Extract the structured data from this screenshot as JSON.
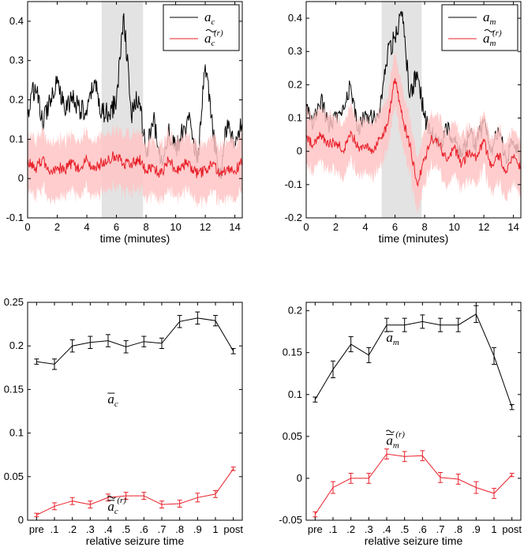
{
  "chart_data": [
    {
      "type": "line",
      "panel": "top-left",
      "xlabel": "time (minutes)",
      "ylabel": "",
      "xlim": [
        0,
        14.5
      ],
      "ylim": [
        -0.1,
        0.45
      ],
      "xticks": [
        0,
        2,
        4,
        6,
        8,
        10,
        12,
        14
      ],
      "yticks": [
        -0.1,
        0,
        0.1,
        0.2,
        0.3,
        0.4
      ],
      "ytick_labels": [
        "-0.1",
        "0",
        "0.1",
        "0.2",
        "0.3",
        "0.4"
      ],
      "shaded_interval": [
        5.0,
        7.8
      ],
      "legend_position": "top-right",
      "series": [
        {
          "name": "a_c",
          "legend_main": "a",
          "legend_sub": "c",
          "legend_sup": "",
          "color": "#000000",
          "x": [
            0,
            0.5,
            1,
            1.5,
            2,
            2.5,
            3,
            3.5,
            4,
            4.5,
            5,
            5.5,
            6,
            6.5,
            7,
            7.5,
            8,
            8.5,
            9,
            9.5,
            10,
            10.5,
            11,
            11.5,
            12,
            12.5,
            13,
            13.5,
            14,
            14.5
          ],
          "values": [
            0.16,
            0.24,
            0.14,
            0.2,
            0.26,
            0.17,
            0.21,
            0.18,
            0.16,
            0.25,
            0.17,
            0.16,
            0.2,
            0.42,
            0.16,
            0.21,
            0.06,
            0.15,
            0.04,
            0.12,
            0.07,
            0.12,
            0.15,
            0.04,
            0.29,
            0.12,
            0.0,
            0.15,
            0.08,
            0.14
          ]
        },
        {
          "name": "a_c^(r)",
          "legend_main": "a",
          "legend_sub": "c",
          "legend_sup": "(r)",
          "color": "#e8202a",
          "x": [
            0,
            0.5,
            1,
            1.5,
            2,
            2.5,
            3,
            3.5,
            4,
            4.5,
            5,
            5.5,
            6,
            6.5,
            7,
            7.5,
            8,
            8.5,
            9,
            9.5,
            10,
            10.5,
            11,
            11.5,
            12,
            12.5,
            13,
            13.5,
            14,
            14.5
          ],
          "values": [
            0.05,
            0.02,
            0.05,
            0.01,
            0.03,
            0.02,
            0.04,
            0.02,
            0.05,
            0.02,
            0.04,
            0.05,
            0.06,
            0.04,
            0.04,
            0.05,
            0.02,
            0.03,
            0.01,
            0.05,
            0.02,
            0.04,
            0.03,
            0.01,
            0.02,
            0.04,
            0.01,
            0.03,
            0.02,
            0.04
          ],
          "band_halfwidth": 0.08
        }
      ]
    },
    {
      "type": "line",
      "panel": "top-right",
      "xlabel": "time (minutes)",
      "ylabel": "",
      "xlim": [
        0,
        14.5
      ],
      "ylim": [
        -0.2,
        0.45
      ],
      "xticks": [
        0,
        2,
        4,
        6,
        8,
        10,
        12,
        14
      ],
      "yticks": [
        -0.2,
        -0.1,
        0,
        0.1,
        0.2,
        0.3,
        0.4
      ],
      "ytick_labels": [
        "-0.2",
        "-0.1",
        "0",
        "0.1",
        "0.2",
        "0.3",
        "0.4"
      ],
      "shaded_interval": [
        5.1,
        7.8
      ],
      "legend_position": "top-right",
      "series": [
        {
          "name": "a_m",
          "legend_main": "a",
          "legend_sub": "m",
          "legend_sup": "",
          "color": "#000000",
          "x": [
            0,
            0.5,
            1,
            1.5,
            2,
            2.5,
            3,
            3.5,
            4,
            4.5,
            5,
            5.5,
            6,
            6.5,
            7,
            7.5,
            8,
            8.5,
            9,
            9.5,
            10,
            10.5,
            11,
            11.5,
            12,
            12.5,
            13,
            13.5,
            14,
            14.5
          ],
          "values": [
            0.12,
            0.08,
            0.16,
            0.08,
            0.1,
            0.14,
            0.2,
            0.06,
            0.12,
            0.09,
            0.13,
            0.3,
            0.34,
            0.42,
            0.16,
            0.24,
            0.1,
            0.05,
            0.02,
            0.06,
            0.04,
            -0.02,
            0.05,
            0.02,
            0.09,
            0.0,
            0.06,
            -0.02,
            0.03,
            -0.03
          ]
        },
        {
          "name": "a_m^(r)",
          "legend_main": "a",
          "legend_sub": "m",
          "legend_sup": "(r)",
          "color": "#e8202a",
          "x": [
            0,
            0.5,
            1,
            1.5,
            2,
            2.5,
            3,
            3.5,
            4,
            4.5,
            5,
            5.5,
            6,
            6.5,
            7,
            7.5,
            8,
            8.5,
            9,
            9.5,
            10,
            10.5,
            11,
            11.5,
            12,
            12.5,
            13,
            13.5,
            14,
            14.5
          ],
          "values": [
            0.04,
            0.02,
            0.05,
            0.02,
            0.03,
            0.0,
            0.06,
            0.01,
            0.02,
            0.0,
            0.04,
            0.08,
            0.22,
            0.1,
            0.02,
            -0.1,
            -0.02,
            0.04,
            0.02,
            -0.03,
            0.01,
            -0.04,
            0.0,
            -0.02,
            0.03,
            -0.05,
            -0.01,
            -0.06,
            -0.02,
            -0.05
          ],
          "band_halfwidth": 0.09
        }
      ]
    },
    {
      "type": "line",
      "panel": "bottom-left",
      "xlabel": "relative seizure time",
      "ylabel": "",
      "categories": [
        "pre",
        ".1",
        ".2",
        ".3",
        ".4",
        ".5",
        ".6",
        ".7",
        ".8",
        ".9",
        "1",
        "post"
      ],
      "ylim": [
        0,
        0.25
      ],
      "yticks": [
        0,
        0.05,
        0.1,
        0.15,
        0.2,
        0.25
      ],
      "ytick_labels": [
        "0",
        "0.05",
        "0.1",
        "0.15",
        "0.2",
        "0.25"
      ],
      "annotations": [
        {
          "text_main": "a",
          "text_sub": "c",
          "text_sup": "",
          "bars": "=",
          "x_category": 3.0,
          "y": 0.134
        },
        {
          "text_main": "a",
          "text_sub": "c",
          "text_sup": "(r)",
          "bars": "≈",
          "x_category": 3.0,
          "y": 0.011
        }
      ],
      "series": [
        {
          "name": "mean a_c",
          "color": "#000000",
          "values": [
            0.182,
            0.179,
            0.2,
            0.204,
            0.206,
            0.199,
            0.205,
            0.203,
            0.228,
            0.232,
            0.229,
            0.194
          ],
          "errors": [
            0.003,
            0.006,
            0.007,
            0.007,
            0.007,
            0.007,
            0.006,
            0.006,
            0.007,
            0.007,
            0.006,
            0.003
          ]
        },
        {
          "name": "mean a_c^(r)",
          "color": "#e8202a",
          "values": [
            0.006,
            0.016,
            0.022,
            0.018,
            0.026,
            0.028,
            0.028,
            0.018,
            0.019,
            0.026,
            0.03,
            0.059
          ],
          "errors": [
            0.002,
            0.004,
            0.004,
            0.004,
            0.004,
            0.004,
            0.004,
            0.004,
            0.004,
            0.005,
            0.004,
            0.002
          ]
        }
      ]
    },
    {
      "type": "line",
      "panel": "bottom-right",
      "xlabel": "relative seizure time",
      "ylabel": "",
      "categories": [
        "pre",
        ".1",
        ".2",
        ".3",
        ".4",
        ".5",
        ".6",
        ".7",
        ".8",
        ".9",
        "1",
        "post"
      ],
      "ylim": [
        -0.05,
        0.21
      ],
      "yticks": [
        -0.05,
        0,
        0.05,
        0.1,
        0.15,
        0.2
      ],
      "ytick_labels": [
        "-0.05",
        "0",
        "0.05",
        "0.1",
        "0.15",
        "0.2"
      ],
      "annotations": [
        {
          "text_main": "a",
          "text_sub": "m",
          "text_sup": "",
          "bars": "=",
          "x_category": 3.0,
          "y": 0.163
        },
        {
          "text_main": "a",
          "text_sub": "m",
          "text_sup": "(r)",
          "bars": "≈",
          "x_category": 3.0,
          "y": 0.04
        }
      ],
      "series": [
        {
          "name": "mean a_m",
          "color": "#000000",
          "values": [
            0.094,
            0.13,
            0.16,
            0.147,
            0.183,
            0.183,
            0.187,
            0.183,
            0.183,
            0.196,
            0.146,
            0.085
          ],
          "errors": [
            0.003,
            0.01,
            0.009,
            0.009,
            0.008,
            0.008,
            0.008,
            0.008,
            0.008,
            0.01,
            0.01,
            0.003
          ]
        },
        {
          "name": "mean a_m^(r)",
          "color": "#e8202a",
          "values": [
            -0.043,
            -0.011,
            0.0,
            0.0,
            0.029,
            0.026,
            0.027,
            0.001,
            -0.001,
            -0.011,
            -0.018,
            0.004
          ],
          "errors": [
            0.003,
            0.007,
            0.006,
            0.006,
            0.006,
            0.006,
            0.006,
            0.006,
            0.006,
            0.007,
            0.006,
            0.002
          ]
        }
      ]
    }
  ]
}
